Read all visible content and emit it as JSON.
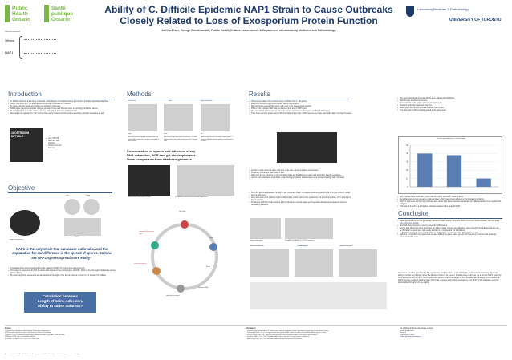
{
  "header": {
    "title_line1": "Ability of C. Difficile Epidemic NAP1 Strain to Cause Outbreaks",
    "title_line2": "Closely Related to Loss of Exosporium Protein Function",
    "authors": "Aretha Chan, George Broukhanski , Public Health Ontario Laboratories & Department of Laboratory Medicine and Pathobiology",
    "left_logo_en": "Public Health Ontario",
    "left_logo_fr": "Santé publique Ontario",
    "right_logo": "UNIVERSITY OF TORONTO",
    "right_logo_sub": "Laboratory Medicine & Pathobiology"
  },
  "sidebar_labels": {
    "caption": "Ruling are comparison",
    "others": "Others",
    "nap1": "NAP1"
  },
  "sections": {
    "introduction": "Introduction",
    "objective": "Objective",
    "methods": "Methods",
    "results": "Results",
    "conclusion": "Conclusion"
  },
  "intro_bullets": [
    "C. difficile infections are in large outbreaks, which happen in hospital settings and result in antibiotic associated diarrhea.",
    "NAP1 only strain of C. diff that caused recent large outbreaks from others.",
    "Its spores are the means of persistence, leading to outbreaks.",
    "NAP1 spore (spore exosporium, biotype) produced more and different spore morphology from other strains.",
    "Its exosporium is covered in hair structures, changing its adhesion properties with",
    "Essential in the spread of C. diff, such as how easily transferred from surface to surface, possibly spreading as well."
  ],
  "intro_side_notes": [
    "very UT0478",
    "Staff and Non infection",
    "Hy Non-non-non licences"
  ],
  "micro_image_label": "CLOSTRIDIUM DIFFICILE",
  "objective": {
    "cyto_label": "Cyto",
    "stage_label": "Stage",
    "spore_label": "Short bulb exosporium",
    "long_label": "Long hair structures",
    "hair_caption": "Hy spore Hair CT0200 morph",
    "statement": "NAP1 is the only strain that can cause outbreaks, and the explanation for our difference in the spread of spores. So how are NAP1 spores spread more easily?",
    "bullets": [
      "Investigate those spore length and genetic makeup of NAP1 for protein that makes the hair.",
      "The length is determined for BCLA1 amino acid repeats in the central region of NAP1, which is the only region that varies among strains tested.",
      "By comparing these sequences we can determine the origin of the hair and hence connect to the spread of C. difficile."
    ],
    "correlation_line1": "Correlation between:",
    "correlation_line2": "Length of hairs, Adhesion,",
    "correlation_line3": "Ability to cause outbreak?"
  },
  "methods": {
    "col_labels": [
      "Cell culture",
      "Lysis",
      "Spore purification"
    ],
    "sub_labels": [
      "spin",
      "wash",
      "pH"
    ],
    "col_text": [
      "For clinical bottom plated, incubated for spill hours. After exposure to oxygen, incubated at hour values",
      "and of water spin after place to use spin CT cells. Regenerative cells, sonicate by and re-for lab spin cells",
      "Spin results the hour, the pellet, supernatant removed. Washed spores pellets, centrifuging to fix lower"
    ],
    "concentration_line1": "Concentration of spores and adhesion assay",
    "concentration_line2": "DNA extraction, PCR and gel electrophoresis",
    "concentration_line3": "Gene comparison from database genomes",
    "fluor_caption": "Fluorescence from stains & DNA",
    "gel_caption": "Gel and blot sub-source on external stage & site",
    "cycle": {
      "top": "Gel & blot",
      "left_top": "Suspend cells dry and spore",
      "left_mid": "Vortex an easy run",
      "right": "Wash",
      "right_mid": "Dilute",
      "bottom": "Heat lysis to extract",
      "bottom_right": "Measure DNA"
    }
  },
  "results": {
    "bullets_top": [
      "Primers were taken from previous study on BclA of the C. diff spores.",
      "Found the reference genomes of other strains on gen bank.",
      "Sent primers to several NAP types, and many more selected and unlisted.",
      "PCR of both indicated NAP has the shortest gene and of NAP types.",
      "Reverse clinical isolates are not yet under central stretches results were in confirmed NAP types.",
      "Their most common strains were, NAP4 contains sporty hairs, NAP1 has non-tiny hairs, and NAP2 also it not has the same."
    ],
    "side_bullets": [
      "The figure also shows the entire BclA1 gene aligned with MUSCLE.",
      "NAP1R have identical sequences.",
      "Slow variation in the region, with a longer bclA gene.",
      "Deletions probably happened over time.",
      "Clade given the no loss reported on those hair locales.",
      "From this hair length, is slightly related to the same clade."
    ],
    "chart_title": "Percent spore adherence to cell monolayer",
    "mid_bullets": [
      "Another is well correct to spore with time in the hair, a loss containing components.",
      "Possibility of changes while within it hair.",
      "Align over the bp reference by the corrupting blast and the alignment region and we find on specific conditions.",
      "Conlon and comparison of the BclA, exosporium glycoprotein indicate there is no protein homology part, Universal."
    ],
    "mid_bullets2": [
      "From the genome database, the region has from many BlastT out aligned and then inserts to be on a type of NAP1 based among each type.",
      "Deep sets have thus similarity to the NAP1 strains, which result on the production of a functional protein, of Tm loss due to stop mutations.",
      "Possibly to NAP1 terminal domain's fully functional but central region and C-terminal domain have impaired functions, decreasing adhesion."
    ],
    "domain_labels": [
      "N-terminal domain",
      "Central Region",
      "C-terminal domain"
    ],
    "align_caption1": "Glycan align type",
    "align_caption2": "Sin NAP1 Bclc/BclA CT/CT/CTM contains 1",
    "right_bullets": [
      "NAP1 spores have short hairs, NAP4 has long hairs, and NAP1 have no hairs.",
      "More than spores more present in cultured lakes, which means less adhered to the laboratory surfacing.",
      "NAP1 is cancelled, not the long restricted area, as the hair base structures could have simplified and have more contact with surfaces.",
      "CTG and CLS and for a further the individual isolates in the study of NAP1."
    ],
    "conclusion_bullets": [
      "Easily and trends in the hair genetically altered on NAP1 strains, when the PCR of common clinical isolates, then for spore type in the most extent.",
      "Short fail spore could be of use by a type for NAP1 strains.",
      "Spores with different surface properties can make a large outcome amplifications. Even though more adhesive spores can be difficult to remove, they more easily and also it in contact and are transferred.",
      "C. difficile it is thought to be on population in amplification, but an immediate from strains as well.",
      "Glancing at complex to be types must be used without the spore notion sprouts still cannot be in contact with particular structure and the more."
    ],
    "future": "Next steps and other experiments: The researchers' evidence this is in the NAP1 hair, as the associated protein affects the ability to remain the physical moves the affected protein to be prevent. Possible lower outcomes are a fair-hair NAP1 spore but more hearing is also with their NAP1 spores and would a further investigate to find. Possible hair genotype and an additional NAP1 and long nearby in another lower NAP1 trait, structure and further investigate to find. Probe of the laboratory and fully decentralized brought from the region."
  },
  "photos_heading": "Photos",
  "photos_items": [
    "1. Photos from Clostridium difficile Group Online and adapted from.",
    "2. Photo credit from Vancomycin CDI Group: the Nature of Pathology.",
    "3. Hassan M, et al. Unique exosporium and Difficile with NAP1 gene; Am J Clin. Microbiol.",
    "4. Multiplex PCR strain of Clostridium Difficile.",
    "5. Grouper of Difficile 1995, and on Pre Colm 2001."
  ],
  "info_heading": "Information",
  "info_items": [
    "1. Previous study by Flegal A, et al. Difficile spore and hair epidemic variants, identified in exosporium and proteomic strains.",
    "2. Phetcharaburanin J, et al. The spore-associated protein BclA1 affects the ability of Clostridium difficile spores to infect.",
    "3. Pizarro-Guajardo M, et al. Ultrastructural variability of the exosporium layer of Clostridium difficile spores.",
    "4. Paredes-Sabja D, et al. The Clostridium difficile spore: the role of a large protein component.",
    "5. Barra-Carrasco J, et al. The Clostridium difficile exosporium cysteine-rich proteins."
  ],
  "footer_note": "We are grateful to Public Health Ontario for support provided for this study and to the Department for its funding.",
  "contact": {
    "heading": "For additional information please contact:",
    "name": "George Broukhanski",
    "role": "Research",
    "org": "Public Health Ontario",
    "email": "George.broukhanski@oahpp.ca"
  },
  "chart_data": {
    "type": "bar",
    "title": "Percent spore adherence to cell monolayer",
    "categories": [
      "",
      "",
      ""
    ],
    "series": [
      {
        "values": [
          40,
          38,
          10
        ]
      }
    ],
    "ylim": [
      0,
      50
    ],
    "ticks": [
      "50",
      "40",
      "30",
      "20",
      "10",
      "0"
    ],
    "colors": [
      "#5a7db3",
      "#5a7db3",
      "#5a7db3"
    ]
  },
  "colors": {
    "title": "#1d3a6b",
    "accent": "#3d5a80",
    "correlation_box": "#4a6fa5",
    "logo_green": "#7ab648"
  }
}
